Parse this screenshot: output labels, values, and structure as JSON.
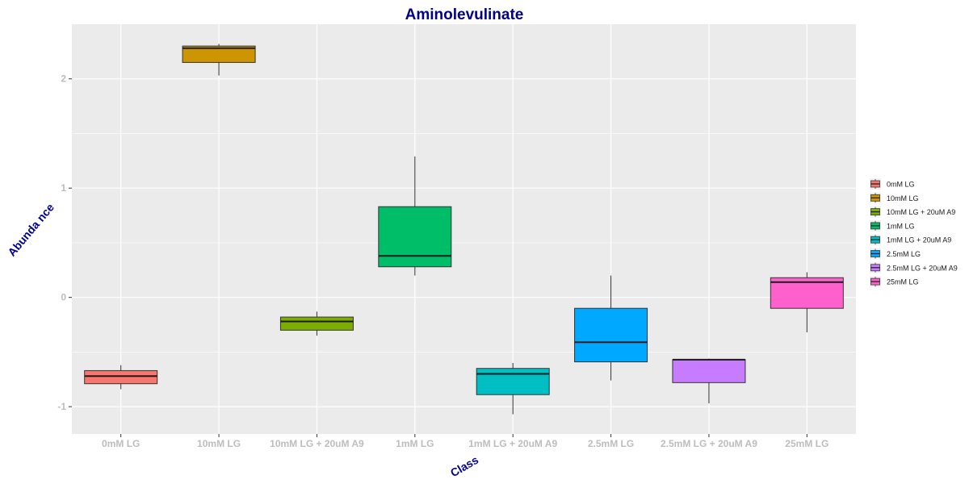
{
  "chart_data": {
    "type": "box",
    "title": "Aminolevulinate",
    "xlabel": "Class",
    "ylabel": "Abunda nce",
    "ylim": [
      -1.25,
      2.5
    ],
    "yticks": [
      -1,
      0,
      1,
      2
    ],
    "grid": true,
    "legend_position": "right",
    "categories": [
      "0mM LG",
      "10mM LG",
      "10mM LG + 20uM A9",
      "1mM LG",
      "1mM LG + 20uM A9",
      "2.5mM LG",
      "2.5mM LG + 20uM A9",
      "25mM LG"
    ],
    "boxes": [
      {
        "name": "0mM LG",
        "color": "#F8766D",
        "min": -0.84,
        "q1": -0.79,
        "median": -0.72,
        "q3": -0.67,
        "max": -0.62
      },
      {
        "name": "10mM LG",
        "color": "#CD9600",
        "min": 2.03,
        "q1": 2.15,
        "median": 2.28,
        "q3": 2.3,
        "max": 2.32
      },
      {
        "name": "10mM LG + 20uM A9",
        "color": "#7CAE00",
        "min": -0.35,
        "q1": -0.3,
        "median": -0.22,
        "q3": -0.18,
        "max": -0.13
      },
      {
        "name": "1mM LG",
        "color": "#00BE67",
        "min": 0.2,
        "q1": 0.28,
        "median": 0.38,
        "q3": 0.83,
        "max": 1.29
      },
      {
        "name": "1mM LG + 20uM A9",
        "color": "#00BFC4",
        "min": -1.07,
        "q1": -0.89,
        "median": -0.7,
        "q3": -0.65,
        "max": -0.6
      },
      {
        "name": "2.5mM LG",
        "color": "#00A9FF",
        "min": -0.76,
        "q1": -0.59,
        "median": -0.41,
        "q3": -0.1,
        "max": 0.2
      },
      {
        "name": "2.5mM LG + 20uM A9",
        "color": "#C77CFF",
        "min": -0.97,
        "q1": -0.78,
        "median": -0.57,
        "q3": -0.57,
        "max": -0.56
      },
      {
        "name": "25mM LG",
        "color": "#FF61CC",
        "min": -0.32,
        "q1": -0.1,
        "median": 0.14,
        "q3": 0.18,
        "max": 0.23
      }
    ],
    "colors": {
      "panel_background": "#EBEBEB",
      "grid": "#FFFFFF",
      "title": "#00008B",
      "tick_label": "#BDBDBD"
    }
  }
}
